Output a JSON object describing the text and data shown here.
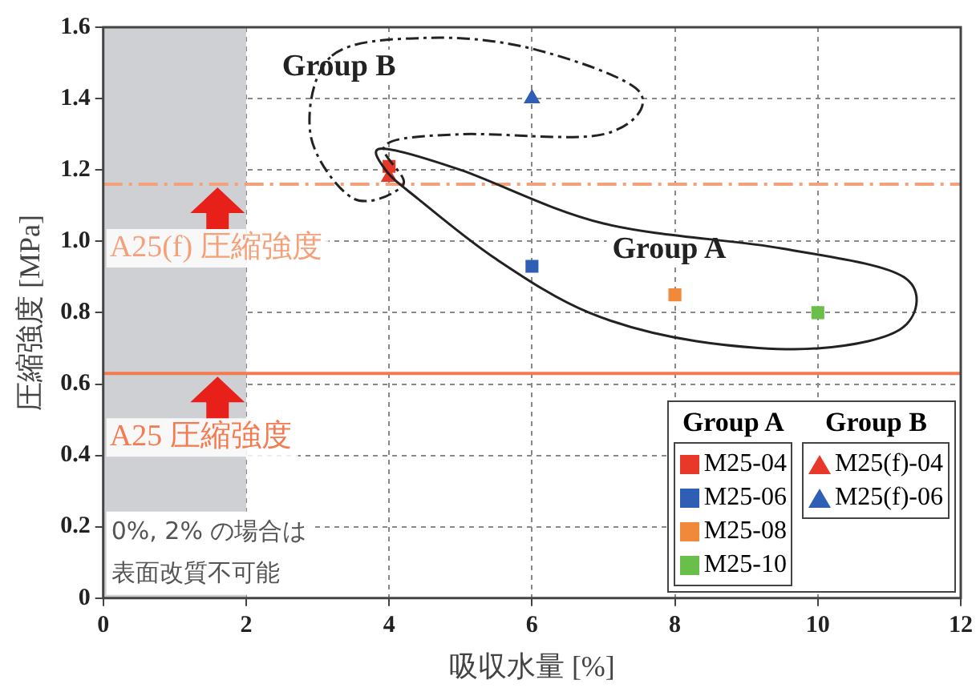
{
  "chart_data": {
    "type": "scatter",
    "xlabel": "吸収水量 [%]",
    "ylabel": "圧縮強度 [MPa]",
    "xlim": [
      0,
      12
    ],
    "xticks": [
      0,
      2,
      4,
      6,
      8,
      10,
      12
    ],
    "ylim": [
      0,
      1.6
    ],
    "yticks": [
      0,
      0.2,
      0.4,
      0.6,
      0.8,
      {
        "value": 1,
        "label": "1.0"
      },
      1.2,
      1.4,
      1.6
    ],
    "grid": true,
    "legend": "bottom right",
    "series": [
      {
        "name": "M25-04",
        "color": "#e8382a",
        "marker": "square",
        "x": [
          4
        ],
        "values": [
          1.21
        ]
      },
      {
        "name": "M25-06",
        "color": "#2e5fb5",
        "marker": "square",
        "x": [
          6
        ],
        "values": [
          0.93
        ]
      },
      {
        "name": "M25-08",
        "color": "#f08a3a",
        "marker": "square",
        "x": [
          8
        ],
        "values": [
          0.85
        ]
      },
      {
        "name": "M25-10",
        "color": "#6abf4b",
        "marker": "square",
        "x": [
          10
        ],
        "values": [
          0.8
        ]
      },
      {
        "name": "M25(f)-04",
        "color": "#e8382a",
        "marker": "triangle",
        "x": [
          4
        ],
        "values": [
          1.18
        ]
      },
      {
        "name": "M25(f)-06",
        "color": "#2e5fb5",
        "marker": "triangle",
        "x": [
          6
        ],
        "values": [
          1.4
        ]
      }
    ],
    "ref_lines": [
      {
        "axis": "y",
        "value": 1.16,
        "label": "A25(f) 圧縮強度",
        "color": "#f4a07a",
        "line_style": "dashed"
      },
      {
        "axis": "y",
        "value": 0.63,
        "label": "A25 圧縮強度",
        "color": "#f47a50",
        "line_style": "solid"
      }
    ],
    "bands": [
      {
        "axis": "x",
        "from": 0,
        "to": 2,
        "color": "#cfd0d3"
      }
    ],
    "annotations": [
      "Group A",
      "Group B",
      "0%, 2% の場合は表面改質不可能"
    ]
  }
}
